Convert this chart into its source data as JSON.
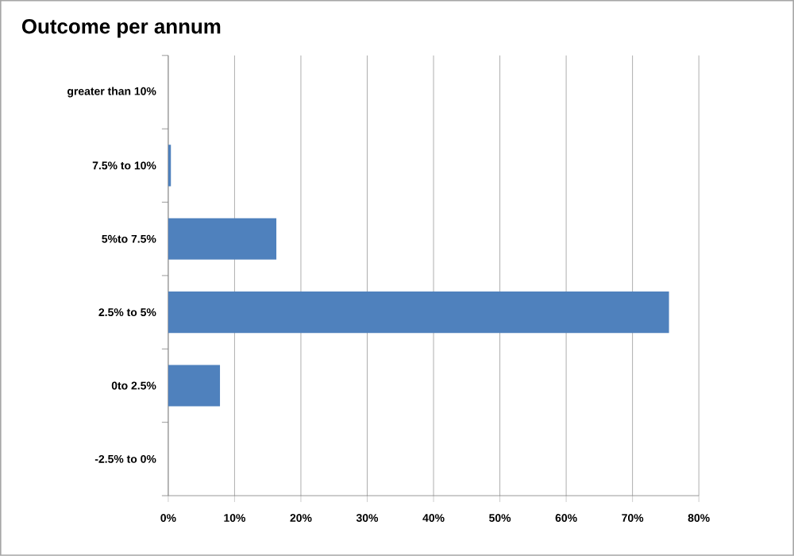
{
  "chart_data": {
    "type": "bar",
    "orientation": "horizontal",
    "title": "Outcome per annum",
    "categories": [
      "greater than 10%",
      "7.5% to 10%",
      "5%to 7.5%",
      "2.5% to 5%",
      "0to 2.5%",
      "-2.5% to 0%"
    ],
    "values": [
      0,
      0.4,
      16.3,
      75.5,
      7.8,
      0
    ],
    "color": "#4f81bd",
    "xlim": [
      0,
      80
    ],
    "xticks": [
      {
        "value": 0,
        "label": "0%"
      },
      {
        "value": 10,
        "label": "10%"
      },
      {
        "value": 20,
        "label": "20%"
      },
      {
        "value": 30,
        "label": "30%"
      },
      {
        "value": 40,
        "label": "40%"
      },
      {
        "value": 50,
        "label": "50%"
      },
      {
        "value": 60,
        "label": "60%"
      },
      {
        "value": 70,
        "label": "70%"
      },
      {
        "value": 80,
        "label": "80%"
      }
    ],
    "grid": "x"
  }
}
